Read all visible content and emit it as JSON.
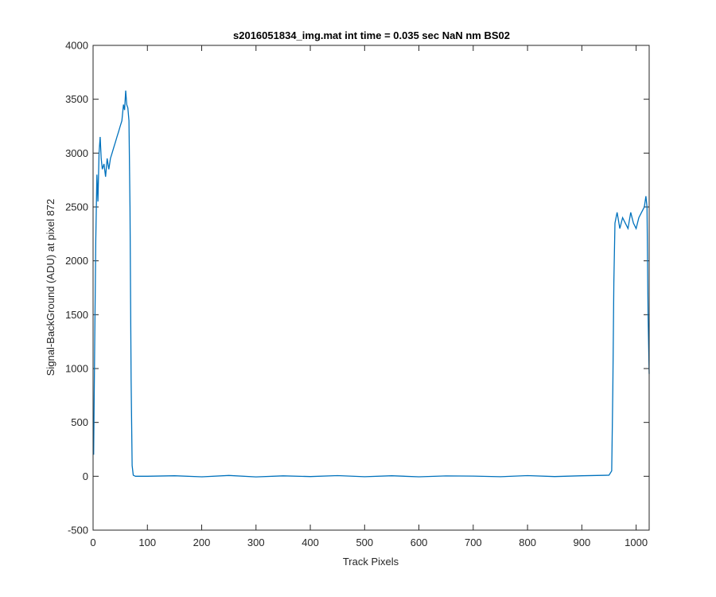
{
  "chart_data": {
    "type": "line",
    "title": "s2016051834_img.mat int time = 0.035 sec  NaN nm BS02",
    "xlabel": "Track Pixels",
    "ylabel": "Signal-BackGround (ADU) at pixel 872",
    "xlim": [
      0,
      1024
    ],
    "ylim": [
      -500,
      4000
    ],
    "x_ticks": [
      0,
      100,
      200,
      300,
      400,
      500,
      600,
      700,
      800,
      900,
      1000
    ],
    "y_ticks": [
      -500,
      0,
      500,
      1000,
      1500,
      2000,
      2500,
      3000,
      3500,
      4000
    ],
    "grid": false,
    "legend": "none",
    "series": [
      {
        "color": "#0072BD",
        "x": [
          1,
          3,
          5,
          7,
          9,
          11,
          13,
          15,
          17,
          20,
          23,
          26,
          29,
          32,
          35,
          38,
          41,
          44,
          47,
          50,
          53,
          56,
          58,
          60,
          62,
          64,
          66,
          68,
          70,
          72,
          74,
          76,
          78,
          100,
          150,
          200,
          250,
          300,
          350,
          400,
          450,
          500,
          550,
          600,
          650,
          700,
          750,
          800,
          850,
          900,
          950,
          955,
          957,
          959,
          961,
          965,
          970,
          975,
          980,
          985,
          990,
          995,
          1000,
          1005,
          1010,
          1015,
          1018,
          1020,
          1022,
          1024
        ],
        "y": [
          200,
          1200,
          2200,
          2800,
          2550,
          3000,
          3150,
          2950,
          2850,
          2900,
          2780,
          2950,
          2850,
          2950,
          3000,
          3050,
          3100,
          3150,
          3200,
          3250,
          3300,
          3450,
          3400,
          3580,
          3450,
          3420,
          3300,
          2500,
          900,
          100,
          10,
          5,
          0,
          0,
          5,
          -5,
          8,
          -6,
          4,
          -3,
          6,
          -4,
          5,
          -5,
          3,
          2,
          -4,
          6,
          -3,
          5,
          10,
          50,
          800,
          1800,
          2350,
          2450,
          2300,
          2400,
          2350,
          2300,
          2450,
          2350,
          2300,
          2400,
          2450,
          2500,
          2600,
          2500,
          1500,
          950
        ]
      }
    ]
  }
}
